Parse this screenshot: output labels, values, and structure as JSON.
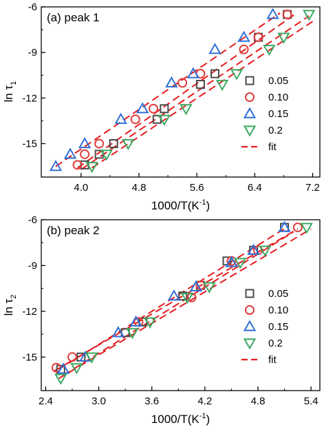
{
  "chart_data": [
    {
      "type": "scatter",
      "panel_label": "(a) peak 1",
      "xlabel": "1000/T(K",
      "xlabel_sup": "-1",
      "xlabel_close": ")",
      "ylabel": "ln τ",
      "ylabel_sub": "1",
      "xlim": [
        3.45,
        7.3
      ],
      "ylim": [
        -17.2,
        -6
      ],
      "xticks": [
        4.0,
        4.8,
        5.6,
        6.4,
        7.2
      ],
      "xtick_labels": [
        "4.0",
        "4.8",
        "5.6",
        "6.4",
        "7.2"
      ],
      "yticks": [
        -15,
        -12,
        -9,
        -6
      ],
      "ytick_labels": [
        "-15",
        "-12",
        "-9",
        "-6"
      ],
      "legend_position": "right",
      "series": [
        {
          "name": "0.05",
          "marker": "square",
          "color": "#4a4a4a",
          "points": [
            [
              4.05,
              -16.4
            ],
            [
              4.25,
              -15.7
            ],
            [
              4.45,
              -15.0
            ],
            [
              5.05,
              -13.4
            ],
            [
              5.15,
              -12.7
            ],
            [
              5.65,
              -11.1
            ],
            [
              5.85,
              -10.4
            ],
            [
              6.45,
              -8.0
            ],
            [
              6.85,
              -6.5
            ]
          ]
        },
        {
          "name": "0.10",
          "marker": "circle",
          "color": "#e03c3c",
          "points": [
            [
              3.95,
              -16.4
            ],
            [
              4.05,
              -15.7
            ],
            [
              4.25,
              -15.0
            ],
            [
              4.75,
              -13.4
            ],
            [
              5.0,
              -12.7
            ],
            [
              5.4,
              -11.0
            ],
            [
              5.65,
              -10.4
            ],
            [
              6.25,
              -8.8
            ],
            [
              6.45,
              -8.0
            ],
            [
              6.85,
              -6.5
            ]
          ]
        },
        {
          "name": "0.15",
          "marker": "triangle-up",
          "color": "#2f6fd6",
          "points": [
            [
              3.65,
              -16.5
            ],
            [
              3.85,
              -15.7
            ],
            [
              4.05,
              -15.0
            ],
            [
              4.55,
              -13.4
            ],
            [
              4.85,
              -12.7
            ],
            [
              5.25,
              -11.0
            ],
            [
              5.55,
              -10.4
            ],
            [
              5.85,
              -8.8
            ],
            [
              6.25,
              -8.0
            ],
            [
              6.65,
              -6.5
            ]
          ]
        },
        {
          "name": "0.2",
          "marker": "triangle-down",
          "color": "#3aa860",
          "points": [
            [
              4.15,
              -16.5
            ],
            [
              4.35,
              -15.7
            ],
            [
              4.65,
              -15.0
            ],
            [
              5.15,
              -13.4
            ],
            [
              5.45,
              -12.7
            ],
            [
              5.95,
              -11.1
            ],
            [
              6.15,
              -10.4
            ],
            [
              6.6,
              -8.8
            ],
            [
              6.8,
              -8.0
            ],
            [
              7.15,
              -6.5
            ]
          ]
        },
        {
          "name": "fit",
          "marker": "dashed-line",
          "color": "#e31a1c",
          "lines": [
            [
              [
                3.65,
                -16.5
              ],
              [
                6.75,
                -6.4
              ]
            ],
            [
              [
                3.95,
                -16.6
              ],
              [
                6.95,
                -6.5
              ]
            ],
            [
              [
                4.0,
                -16.7
              ],
              [
                7.15,
                -6.6
              ]
            ],
            [
              [
                4.15,
                -16.6
              ],
              [
                7.25,
                -6.8
              ]
            ]
          ]
        }
      ]
    },
    {
      "type": "scatter",
      "panel_label": "(b) peak 2",
      "xlabel": "1000/T(K",
      "xlabel_sup": "-1",
      "xlabel_close": ")",
      "ylabel": "ln τ",
      "ylabel_sub": "2",
      "xlim": [
        2.35,
        5.5
      ],
      "ylim": [
        -17.2,
        -6
      ],
      "xticks": [
        2.4,
        3.0,
        3.6,
        4.2,
        4.8,
        5.4
      ],
      "xtick_labels": [
        "2.4",
        "3.0",
        "3.6",
        "4.2",
        "4.8",
        "5.4"
      ],
      "yticks": [
        -15,
        -12,
        -9,
        -6
      ],
      "ytick_labels": [
        "-15",
        "-12",
        "-9",
        "-6"
      ],
      "legend_position": "right",
      "series": [
        {
          "name": "0.05",
          "marker": "square",
          "color": "#4a4a4a",
          "points": [
            [
              2.57,
              -15.8
            ],
            [
              2.8,
              -15.0
            ],
            [
              3.3,
              -13.4
            ],
            [
              3.5,
              -12.7
            ],
            [
              3.95,
              -11.0
            ],
            [
              4.15,
              -10.3
            ],
            [
              4.45,
              -8.7
            ],
            [
              4.75,
              -8.0
            ],
            [
              5.1,
              -6.5
            ]
          ]
        },
        {
          "name": "0.10",
          "marker": "circle",
          "color": "#e03c3c",
          "points": [
            [
              2.52,
              -15.7
            ],
            [
              2.7,
              -15.0
            ],
            [
              3.45,
              -12.7
            ],
            [
              4.05,
              -11.1
            ],
            [
              4.15,
              -10.3
            ],
            [
              4.5,
              -8.7
            ],
            [
              4.8,
              -8.0
            ],
            [
              5.25,
              -6.5
            ]
          ]
        },
        {
          "name": "0.15",
          "marker": "triangle-up",
          "color": "#2f6fd6",
          "points": [
            [
              2.6,
              -15.8
            ],
            [
              2.85,
              -15.0
            ],
            [
              3.22,
              -13.4
            ],
            [
              3.42,
              -12.7
            ],
            [
              3.85,
              -11.0
            ],
            [
              4.1,
              -10.4
            ],
            [
              4.5,
              -8.8
            ],
            [
              4.75,
              -8.0
            ],
            [
              5.1,
              -6.5
            ]
          ]
        },
        {
          "name": "0.2",
          "marker": "triangle-down",
          "color": "#3aa860",
          "points": [
            [
              2.57,
              -16.4
            ],
            [
              2.75,
              -15.7
            ],
            [
              2.92,
              -15.0
            ],
            [
              3.38,
              -13.4
            ],
            [
              3.58,
              -12.7
            ],
            [
              4.0,
              -11.1
            ],
            [
              4.25,
              -10.4
            ],
            [
              4.6,
              -8.8
            ],
            [
              4.88,
              -8.0
            ],
            [
              5.35,
              -6.5
            ]
          ]
        },
        {
          "name": "fit",
          "marker": "dashed-line",
          "color": "#e31a1c",
          "lines": [
            [
              [
                2.55,
                -15.8
              ],
              [
                5.15,
                -6.4
              ]
            ],
            [
              [
                2.5,
                -15.9
              ],
              [
                5.25,
                -6.6
              ]
            ],
            [
              [
                2.6,
                -16.2
              ],
              [
                5.2,
                -6.8
              ]
            ],
            [
              [
                2.55,
                -16.4
              ],
              [
                5.4,
                -6.6
              ]
            ]
          ]
        }
      ]
    }
  ]
}
